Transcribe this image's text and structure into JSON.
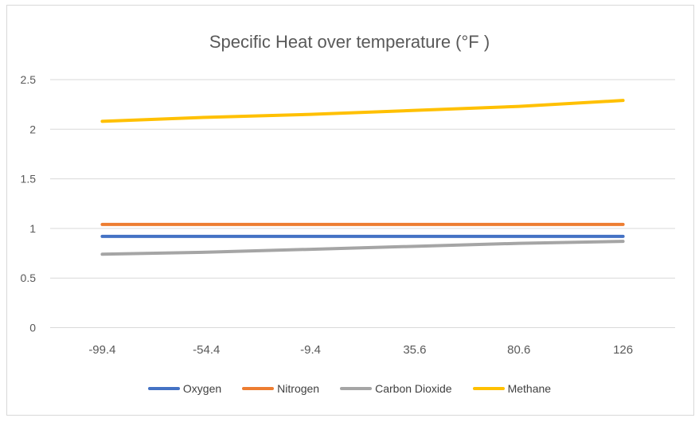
{
  "chart_data": {
    "type": "line",
    "title": "Specific Heat over temperature (°F )",
    "xlabel": "",
    "ylabel": "",
    "categories": [
      "-99.4",
      "-54.4",
      "-9.4",
      "35.6",
      "80.6",
      "126"
    ],
    "ylim": [
      0,
      2.5
    ],
    "yticks": [
      "0",
      "0.5",
      "1",
      "1.5",
      "2",
      "2.5"
    ],
    "grid": true,
    "legend": "bottom",
    "series": [
      {
        "name": "Oxygen",
        "color": "#4472c4",
        "values": [
          0.92,
          0.92,
          0.92,
          0.92,
          0.92,
          0.92
        ]
      },
      {
        "name": "Nitrogen",
        "color": "#ed7d31",
        "values": [
          1.04,
          1.04,
          1.04,
          1.04,
          1.04,
          1.04
        ]
      },
      {
        "name": "Carbon Dioxide",
        "color": "#a5a5a5",
        "values": [
          0.74,
          0.76,
          0.79,
          0.82,
          0.85,
          0.87
        ]
      },
      {
        "name": "Methane",
        "color": "#ffc000",
        "values": [
          2.08,
          2.12,
          2.15,
          2.19,
          2.23,
          2.29
        ]
      }
    ]
  }
}
